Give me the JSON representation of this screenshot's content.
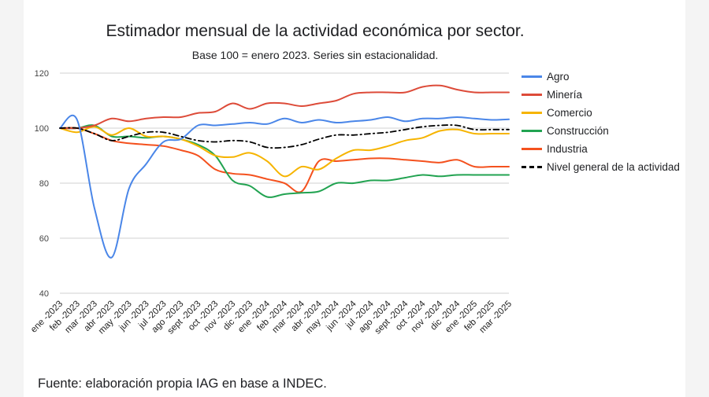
{
  "chart_data": {
    "type": "line",
    "title": "Estimador mensual de la actividad económica por sector.",
    "subtitle": "Base 100 = enero 2023. Series sin estacionalidad.",
    "source": "Fuente: elaboración propia IAG en base a INDEC.",
    "ylim": [
      40,
      120
    ],
    "yticks": [
      "120",
      "100",
      "80",
      "60",
      "40"
    ],
    "ytick_values": [
      120,
      100,
      80,
      60,
      40
    ],
    "legend_position": "right",
    "categories": [
      "ene -2023",
      "feb -2023",
      "mar -2023",
      "abr -2023",
      "may -2023",
      "jun -2023",
      "jul -2023",
      "ago -2023",
      "sept -2023",
      "oct -2023",
      "nov -2023",
      "dic -2023",
      "ene -2024",
      "feb -2024",
      "mar -2024",
      "abr -2024",
      "may -2024",
      "jun -2024",
      "jul -2024",
      "ago -2024",
      "sept -2024",
      "oct -2024",
      "nov -2024",
      "dic -2024",
      "ene -2025",
      "feb -2025",
      "mar -2025"
    ],
    "series": [
      {
        "name": "Agro",
        "color": "#4a86e8",
        "dashed": false,
        "values": [
          100,
          103,
          71,
          53,
          78,
          87,
          95,
          96,
          101,
          101,
          101.5,
          102,
          101.5,
          103.5,
          102,
          103,
          102,
          102.5,
          103,
          104,
          102.5,
          103.5,
          103.5,
          104,
          103.5,
          103,
          103.2
        ]
      },
      {
        "name": "Minería",
        "color": "#dd4b39",
        "dashed": false,
        "values": [
          100,
          100,
          101,
          103.5,
          102.5,
          103.5,
          104,
          104,
          105.5,
          106,
          109,
          107,
          109,
          109,
          108,
          109,
          110,
          112.5,
          113,
          113,
          113,
          115,
          115.5,
          114,
          113,
          113,
          113
        ]
      },
      {
        "name": "Comercio",
        "color": "#f6b400",
        "dashed": false,
        "values": [
          100,
          98.5,
          100.5,
          97.5,
          100,
          97,
          97,
          96,
          93.5,
          90,
          89.5,
          91,
          88,
          82.5,
          86,
          85,
          89,
          92,
          92,
          93.5,
          95.5,
          96.5,
          99,
          99.5,
          98,
          98,
          98
        ]
      },
      {
        "name": "Construcción",
        "color": "#22a351",
        "dashed": false,
        "values": [
          100,
          100,
          101,
          97,
          97,
          96.5,
          97,
          96,
          94,
          90,
          81,
          79,
          75,
          76,
          76.5,
          77,
          80,
          80,
          81,
          81,
          82,
          83,
          82.5,
          83,
          83,
          83,
          83
        ]
      },
      {
        "name": "Industria",
        "color": "#f4511e",
        "dashed": false,
        "values": [
          100,
          100,
          98,
          95.5,
          94.5,
          94,
          93.5,
          92,
          90,
          85,
          83.5,
          83,
          81.5,
          80,
          77,
          88,
          88,
          88.5,
          89,
          89,
          88.5,
          88,
          87.5,
          88.5,
          86,
          86,
          86
        ]
      },
      {
        "name": "Nivel general de la actividad",
        "color": "#000000",
        "dashed": true,
        "values": [
          100,
          100,
          98,
          95.5,
          97,
          98.5,
          98.5,
          97,
          95.5,
          95,
          95.5,
          95,
          93,
          93,
          94,
          96,
          97.5,
          97.5,
          98,
          98.5,
          99.5,
          100.5,
          101,
          101,
          99.5,
          99.5,
          99.5
        ]
      }
    ]
  }
}
